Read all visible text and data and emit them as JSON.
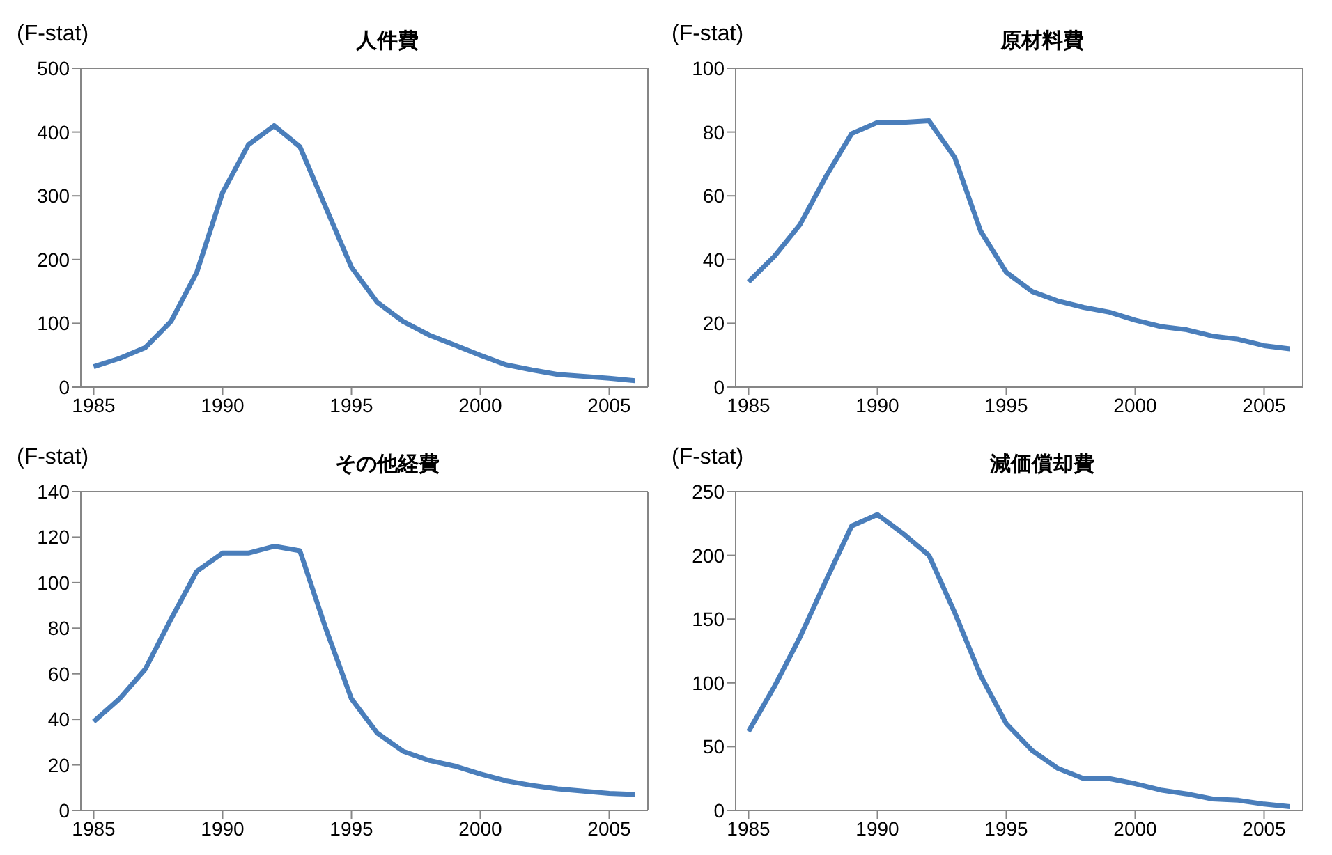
{
  "chart_data": [
    {
      "type": "line",
      "title": "人件費",
      "ylabel": "(F-stat)",
      "color": "#4a7ebb",
      "xlim": [
        1984.5,
        2006.5
      ],
      "xticks": [
        1985,
        1990,
        1995,
        2000,
        2005
      ],
      "ylim": [
        0,
        500
      ],
      "yticks": [
        0,
        100,
        200,
        300,
        400,
        500
      ],
      "x": [
        1985,
        1986,
        1987,
        1988,
        1989,
        1990,
        1991,
        1992,
        1993,
        1994,
        1995,
        1996,
        1997,
        1998,
        1999,
        2000,
        2001,
        2002,
        2003,
        2004,
        2005,
        2006
      ],
      "values": [
        32,
        45,
        62,
        103,
        180,
        305,
        380,
        410,
        377,
        282,
        188,
        133,
        103,
        82,
        66,
        50,
        35,
        27,
        20,
        17,
        14,
        10
      ]
    },
    {
      "type": "line",
      "title": "原材料費",
      "ylabel": "(F-stat)",
      "color": "#4a7ebb",
      "xlim": [
        1984.5,
        2006.5
      ],
      "xticks": [
        1985,
        1990,
        1995,
        2000,
        2005
      ],
      "ylim": [
        0,
        100
      ],
      "yticks": [
        0,
        20,
        40,
        60,
        80,
        100
      ],
      "x": [
        1985,
        1986,
        1987,
        1988,
        1989,
        1990,
        1991,
        1992,
        1993,
        1994,
        1995,
        1996,
        1997,
        1998,
        1999,
        2000,
        2001,
        2002,
        2003,
        2004,
        2005,
        2006
      ],
      "values": [
        33,
        41,
        51,
        66,
        79.5,
        83,
        83,
        83.5,
        72,
        49,
        36,
        30,
        27,
        25,
        23.5,
        21,
        19,
        18,
        16,
        15,
        13,
        12
      ]
    },
    {
      "type": "line",
      "title": "その他経費",
      "ylabel": "(F-stat)",
      "color": "#4a7ebb",
      "xlim": [
        1984.5,
        2006.5
      ],
      "xticks": [
        1985,
        1990,
        1995,
        2000,
        2005
      ],
      "ylim": [
        0,
        140
      ],
      "yticks": [
        0,
        20,
        40,
        60,
        80,
        100,
        120,
        140
      ],
      "x": [
        1985,
        1986,
        1987,
        1988,
        1989,
        1990,
        1991,
        1992,
        1993,
        1994,
        1995,
        1996,
        1997,
        1998,
        1999,
        2000,
        2001,
        2002,
        2003,
        2004,
        2005,
        2006
      ],
      "values": [
        39,
        49,
        62,
        84,
        105,
        113,
        113,
        116,
        114,
        80,
        49,
        34,
        26,
        22,
        19.5,
        16,
        13,
        11,
        9.5,
        8.5,
        7.5,
        7
      ]
    },
    {
      "type": "line",
      "title": "減価償却費",
      "ylabel": "(F-stat)",
      "color": "#4a7ebb",
      "xlim": [
        1984.5,
        2006.5
      ],
      "xticks": [
        1985,
        1990,
        1995,
        2000,
        2005
      ],
      "ylim": [
        0,
        250
      ],
      "yticks": [
        0,
        50,
        100,
        150,
        200,
        250
      ],
      "x": [
        1985,
        1986,
        1987,
        1988,
        1989,
        1990,
        1991,
        1992,
        1993,
        1994,
        1995,
        1996,
        1997,
        1998,
        1999,
        2000,
        2001,
        2002,
        2003,
        2004,
        2005,
        2006
      ],
      "values": [
        62,
        97,
        136,
        180,
        223,
        232,
        217,
        200,
        155,
        106,
        68,
        47,
        33,
        25,
        25,
        21,
        16,
        13,
        9,
        8,
        5,
        3
      ]
    }
  ]
}
